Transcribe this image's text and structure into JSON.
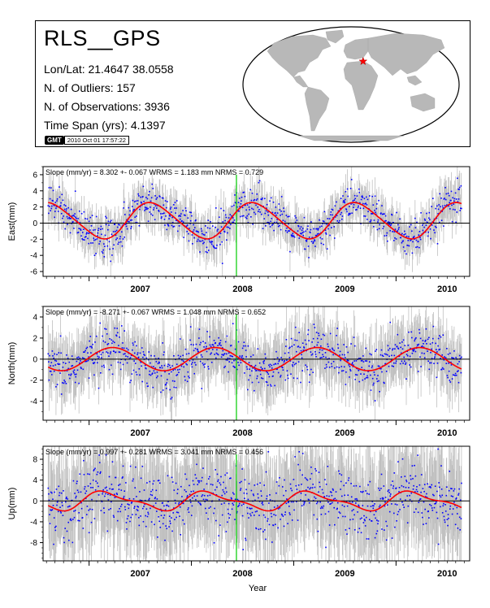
{
  "header": {
    "station": "RLS__GPS",
    "lonlat_label": "Lon/Lat: 21.4647   38.0558",
    "outliers_label": "N. of Outliers: 157",
    "observations_label": "N. of Observations: 3936",
    "timespan_label": "Time Span (yrs): 4.1397",
    "gmt_logo": "GMT",
    "gmt_timestamp": "2010 Oct 01 17:57:22",
    "map_marker_lonlat": [
      21.4647,
      38.0558
    ]
  },
  "chart_data": [
    {
      "type": "scatter",
      "component": "east",
      "ylabel": "East(mm)",
      "annotation": "Slope (mm/yr) = 8.302 +- 0.067 WRMS = 1.183 mm NRMS = 0.729",
      "xlim": [
        2006.55,
        2010.72
      ],
      "ylim": [
        -6.6,
        7.0
      ],
      "yticks": [
        -6,
        -4,
        -2,
        0,
        2,
        4,
        6
      ],
      "xticks": [
        2007,
        2008,
        2009,
        2010
      ],
      "xtick_labels": [
        "2007",
        "2008",
        "2009",
        "2010"
      ],
      "green_line_x": 2008.44,
      "model": {
        "offset": 0.3,
        "amplitude": 2.2,
        "period_yr": 1.0,
        "phase_yr": 2006.37,
        "semiannual": 0.25
      },
      "noise_scatter": 1.15,
      "error_bar": 1.8,
      "series_colors": {
        "points": "#0000ff",
        "model": "#ff0000",
        "errors": "#c0c0c0",
        "break": "#00cc00"
      }
    },
    {
      "type": "scatter",
      "component": "north",
      "ylabel": "North(mm)",
      "annotation": "Slope (mm/yr) = -8.271 +- 0.067 WRMS = 1.048 mm NRMS = 0.652",
      "xlim": [
        2006.55,
        2010.72
      ],
      "ylim": [
        -5.8,
        5.0
      ],
      "yticks": [
        -4,
        -2,
        0,
        2,
        4
      ],
      "xticks": [
        2007,
        2008,
        2009,
        2010
      ],
      "xtick_labels": [
        "2007",
        "2008",
        "2009",
        "2010"
      ],
      "green_line_x": 2008.44,
      "model": {
        "offset": 0.0,
        "amplitude": 1.1,
        "period_yr": 1.0,
        "phase_yr": 2006.98,
        "semiannual": 0.0
      },
      "noise_scatter": 1.05,
      "error_bar": 2.2,
      "series_colors": {
        "points": "#0000ff",
        "model": "#ff0000",
        "errors": "#c0c0c0",
        "break": "#00cc00"
      }
    },
    {
      "type": "scatter",
      "component": "up",
      "ylabel": "Up(mm)",
      "annotation": "Slope (mm/yr) = 0.997 +- 0.281 WRMS = 3.041 mm NRMS = 0.456",
      "xlim": [
        2006.55,
        2010.72
      ],
      "ylim": [
        -11.5,
        10.5
      ],
      "yticks": [
        -8,
        -4,
        0,
        4,
        8
      ],
      "xticks": [
        2007,
        2008,
        2009,
        2010
      ],
      "xtick_labels": [
        "2007",
        "2008",
        "2009",
        "2010"
      ],
      "green_line_x": 2008.44,
      "model": {
        "offset": 0.0,
        "amplitude": 1.6,
        "period_yr": 1.0,
        "phase_yr": 2006.93,
        "semiannual": 0.6
      },
      "noise_scatter": 3.0,
      "error_bar": 7.5,
      "series_colors": {
        "points": "#0000ff",
        "model": "#ff0000",
        "errors": "#c0c0c0",
        "break": "#00cc00"
      }
    }
  ],
  "xlabel": "Year"
}
